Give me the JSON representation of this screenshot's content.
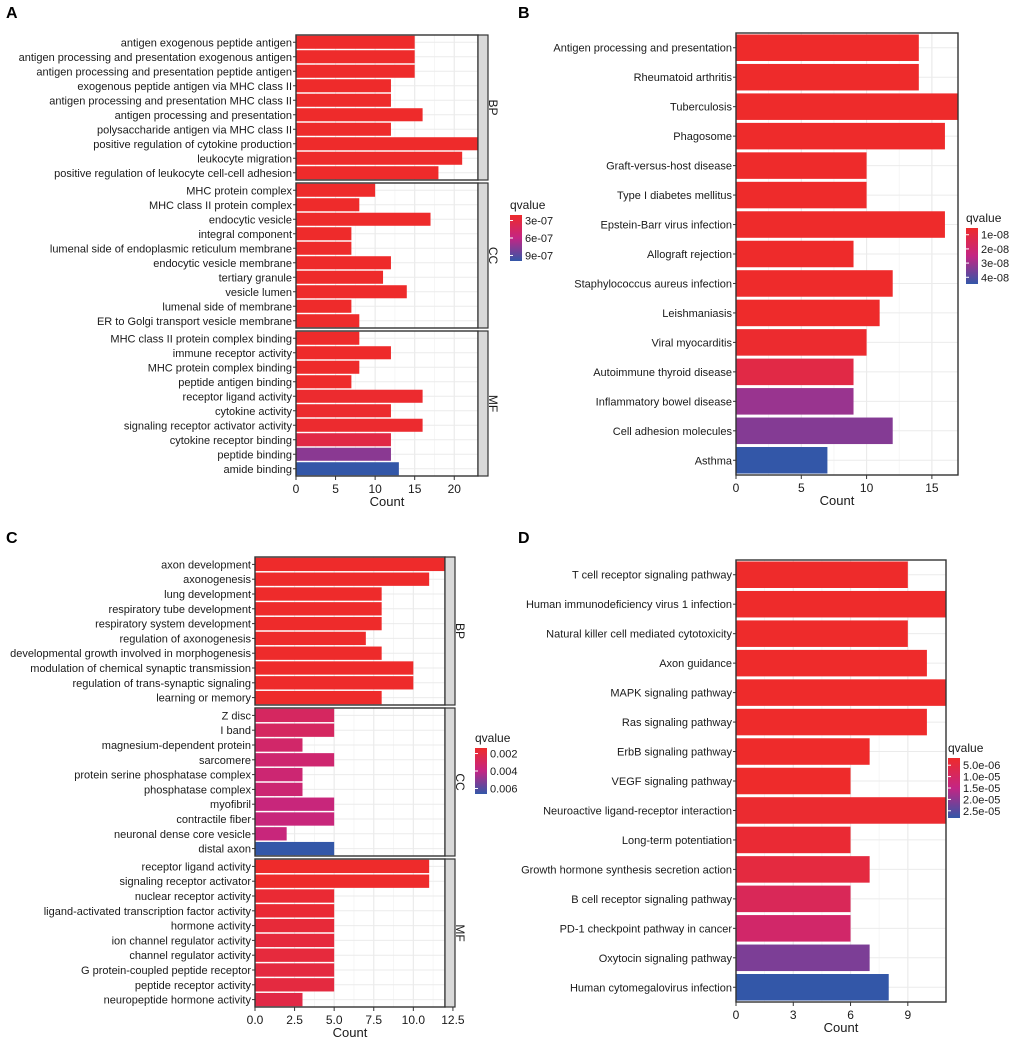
{
  "colors": {
    "low": "#ee2b2b",
    "high": "#3357a8",
    "grid": "#ebebeb",
    "frame": "#333333",
    "strip": "#d9d9d9"
  },
  "chart_data": [
    {
      "panel": "A",
      "type": "bar",
      "orientation": "horizontal",
      "xlabel": "Count",
      "xlim": [
        0,
        23
      ],
      "xticks": [
        0,
        5,
        10,
        15,
        20
      ],
      "legend_title": "qvalue",
      "legend_ticks": [
        "3e-07",
        "6e-07",
        "9e-07"
      ],
      "facets": [
        {
          "name": "BP",
          "bars": [
            {
              "label": "antigen exogenous peptide antigen",
              "value": 15,
              "q": 0
            },
            {
              "label": "antigen processing and presentation exogenous antigen",
              "value": 15,
              "q": 0
            },
            {
              "label": "antigen processing and presentation peptide antigen",
              "value": 15,
              "q": 0
            },
            {
              "label": "exogenous peptide antigen via MHC class II",
              "value": 12,
              "q": 0
            },
            {
              "label": "antigen processing and presentation MHC class II",
              "value": 12,
              "q": 0
            },
            {
              "label": "antigen processing and presentation",
              "value": 16,
              "q": 0
            },
            {
              "label": "polysaccharide antigen via MHC class II",
              "value": 12,
              "q": 0
            },
            {
              "label": "positive regulation of cytokine production",
              "value": 23,
              "q": 0
            },
            {
              "label": "leukocyte migration",
              "value": 21,
              "q": 0
            },
            {
              "label": "positive regulation of leukocyte cell-cell adhesion",
              "value": 18,
              "q": 0
            }
          ]
        },
        {
          "name": "CC",
          "bars": [
            {
              "label": "MHC protein complex",
              "value": 10,
              "q": 0
            },
            {
              "label": "MHC class II protein complex",
              "value": 8,
              "q": 0
            },
            {
              "label": "endocytic vesicle",
              "value": 17,
              "q": 0
            },
            {
              "label": "integral component",
              "value": 7,
              "q": 0
            },
            {
              "label": "lumenal side of endoplasmic reticulum membrane",
              "value": 7,
              "q": 0
            },
            {
              "label": "endocytic vesicle membrane",
              "value": 12,
              "q": 0
            },
            {
              "label": "tertiary granule",
              "value": 11,
              "q": 0
            },
            {
              "label": "vesicle lumen",
              "value": 14,
              "q": 0
            },
            {
              "label": "lumenal side of membrane",
              "value": 7,
              "q": 0
            },
            {
              "label": "ER to Golgi transport vesicle membrane",
              "value": 8,
              "q": 0
            }
          ]
        },
        {
          "name": "MF",
          "bars": [
            {
              "label": "MHC class II protein complex binding",
              "value": 8,
              "q": 0
            },
            {
              "label": "immune receptor activity",
              "value": 12,
              "q": 0
            },
            {
              "label": "MHC protein complex binding",
              "value": 8,
              "q": 0
            },
            {
              "label": "peptide antigen binding",
              "value": 7,
              "q": 0
            },
            {
              "label": "receptor ligand activity",
              "value": 16,
              "q": 0.02
            },
            {
              "label": "cytokine activity",
              "value": 12,
              "q": 0.02
            },
            {
              "label": "signaling receptor activator activity",
              "value": 16,
              "q": 0.02
            },
            {
              "label": "cytokine receptor binding",
              "value": 12,
              "q": 0.15
            },
            {
              "label": "peptide binding",
              "value": 12,
              "q": 0.7
            },
            {
              "label": "amide binding",
              "value": 13,
              "q": 1.0
            }
          ]
        }
      ]
    },
    {
      "panel": "B",
      "type": "bar",
      "orientation": "horizontal",
      "xlabel": "Count",
      "xlim": [
        0,
        17
      ],
      "xticks": [
        0,
        5,
        10,
        15
      ],
      "legend_title": "qvalue",
      "legend_ticks": [
        "1e-08",
        "2e-08",
        "3e-08",
        "4e-08"
      ],
      "facets": [
        {
          "name": "",
          "bars": [
            {
              "label": "Antigen processing and presentation",
              "value": 14,
              "q": 0
            },
            {
              "label": "Rheumatoid arthritis",
              "value": 14,
              "q": 0
            },
            {
              "label": "Tuberculosis",
              "value": 17,
              "q": 0
            },
            {
              "label": "Phagosome",
              "value": 16,
              "q": 0
            },
            {
              "label": "Graft-versus-host disease",
              "value": 10,
              "q": 0
            },
            {
              "label": "Type I diabetes mellitus",
              "value": 10,
              "q": 0
            },
            {
              "label": "Epstein-Barr virus infection",
              "value": 16,
              "q": 0
            },
            {
              "label": "Allograft rejection",
              "value": 9,
              "q": 0
            },
            {
              "label": "Staphylococcus aureus infection",
              "value": 12,
              "q": 0
            },
            {
              "label": "Leishmaniasis",
              "value": 11,
              "q": 0
            },
            {
              "label": "Viral myocarditis",
              "value": 10,
              "q": 0.02
            },
            {
              "label": "Autoimmune thyroid disease",
              "value": 9,
              "q": 0.15
            },
            {
              "label": "Inflammatory bowel disease",
              "value": 9,
              "q": 0.65
            },
            {
              "label": "Cell adhesion molecules",
              "value": 12,
              "q": 0.72
            },
            {
              "label": "Asthma",
              "value": 7,
              "q": 1.0
            }
          ]
        }
      ]
    },
    {
      "panel": "C",
      "type": "bar",
      "orientation": "horizontal",
      "xlabel": "Count",
      "xlim": [
        0,
        12
      ],
      "xticks": [
        "0.0",
        "2.5",
        "5.0",
        "7.5",
        "10.0",
        "12.5"
      ],
      "xtick_values": [
        0,
        2.5,
        5,
        7.5,
        10,
        12.5
      ],
      "legend_title": "qvalue",
      "legend_ticks": [
        "0.002",
        "0.004",
        "0.006"
      ],
      "facets": [
        {
          "name": "BP",
          "bars": [
            {
              "label": "axon development",
              "value": 12,
              "q": 0
            },
            {
              "label": "axonogenesis",
              "value": 11,
              "q": 0
            },
            {
              "label": "lung development",
              "value": 8,
              "q": 0
            },
            {
              "label": "respiratory tube development",
              "value": 8,
              "q": 0
            },
            {
              "label": "respiratory system development",
              "value": 8,
              "q": 0
            },
            {
              "label": "regulation of axonogenesis",
              "value": 7,
              "q": 0
            },
            {
              "label": "developmental growth involved in morphogenesis",
              "value": 8,
              "q": 0
            },
            {
              "label": "modulation of chemical synaptic transmission",
              "value": 10,
              "q": 0
            },
            {
              "label": "regulation of trans-synaptic signaling",
              "value": 10,
              "q": 0
            },
            {
              "label": "learning or memory",
              "value": 8,
              "q": 0
            }
          ]
        },
        {
          "name": "CC",
          "bars": [
            {
              "label": "Z disc",
              "value": 5,
              "q": 0.3
            },
            {
              "label": "I band",
              "value": 5,
              "q": 0.3
            },
            {
              "label": "magnesium-dependent protein",
              "value": 3,
              "q": 0.35
            },
            {
              "label": "sarcomere",
              "value": 5,
              "q": 0.38
            },
            {
              "label": "protein serine phosphatase complex",
              "value": 3,
              "q": 0.4
            },
            {
              "label": "phosphatase complex",
              "value": 3,
              "q": 0.4
            },
            {
              "label": "myofibril",
              "value": 5,
              "q": 0.45
            },
            {
              "label": "contractile fiber",
              "value": 5,
              "q": 0.45
            },
            {
              "label": "neuronal dense core vesicle",
              "value": 2,
              "q": 0.45
            },
            {
              "label": "distal axon",
              "value": 5,
              "q": 1.0
            }
          ]
        },
        {
          "name": "MF",
          "bars": [
            {
              "label": "receptor ligand activity",
              "value": 11,
              "q": 0
            },
            {
              "label": "signaling receptor activator",
              "value": 11,
              "q": 0
            },
            {
              "label": "nuclear receptor activity",
              "value": 5,
              "q": 0.05
            },
            {
              "label": "ligand-activated transcription factor activity",
              "value": 5,
              "q": 0.05
            },
            {
              "label": "hormone activity",
              "value": 5,
              "q": 0.08
            },
            {
              "label": "ion channel regulator activity",
              "value": 5,
              "q": 0.1
            },
            {
              "label": "channel regulator activity",
              "value": 5,
              "q": 0.1
            },
            {
              "label": "G protein-coupled peptide receptor",
              "value": 5,
              "q": 0.12
            },
            {
              "label": "peptide receptor activity",
              "value": 5,
              "q": 0.12
            },
            {
              "label": "neuropeptide hormone activity",
              "value": 3,
              "q": 0.15
            }
          ]
        }
      ]
    },
    {
      "panel": "D",
      "type": "bar",
      "orientation": "horizontal",
      "xlabel": "Count",
      "xlim": [
        0,
        11
      ],
      "xticks": [
        0,
        3,
        6,
        9
      ],
      "legend_title": "qvalue",
      "legend_ticks": [
        "5.0e-06",
        "1.0e-05",
        "1.5e-05",
        "2.0e-05",
        "2.5e-05"
      ],
      "facets": [
        {
          "name": "",
          "bars": [
            {
              "label": "T cell receptor signaling pathway",
              "value": 9,
              "q": 0
            },
            {
              "label": "Human immunodeficiency virus 1 infection",
              "value": 11,
              "q": 0
            },
            {
              "label": "Natural killer cell mediated cytotoxicity",
              "value": 9,
              "q": 0
            },
            {
              "label": "Axon guidance",
              "value": 10,
              "q": 0
            },
            {
              "label": "MAPK signaling pathway",
              "value": 11,
              "q": 0
            },
            {
              "label": "Ras signaling pathway",
              "value": 10,
              "q": 0
            },
            {
              "label": "ErbB signaling pathway",
              "value": 7,
              "q": 0
            },
            {
              "label": "VEGF signaling pathway",
              "value": 6,
              "q": 0
            },
            {
              "label": "Neuroactive ligand-receptor interaction",
              "value": 11,
              "q": 0.03
            },
            {
              "label": "Long-term potentiation",
              "value": 6,
              "q": 0.05
            },
            {
              "label": "Growth hormone synthesis secretion action",
              "value": 7,
              "q": 0.12
            },
            {
              "label": "B cell receptor signaling pathway",
              "value": 6,
              "q": 0.25
            },
            {
              "label": "PD-1 checkpoint pathway in cancer",
              "value": 6,
              "q": 0.35
            },
            {
              "label": "Oxytocin signaling pathway",
              "value": 7,
              "q": 0.75
            },
            {
              "label": "Human cytomegalovirus infection",
              "value": 8,
              "q": 1.0
            }
          ]
        }
      ]
    }
  ]
}
